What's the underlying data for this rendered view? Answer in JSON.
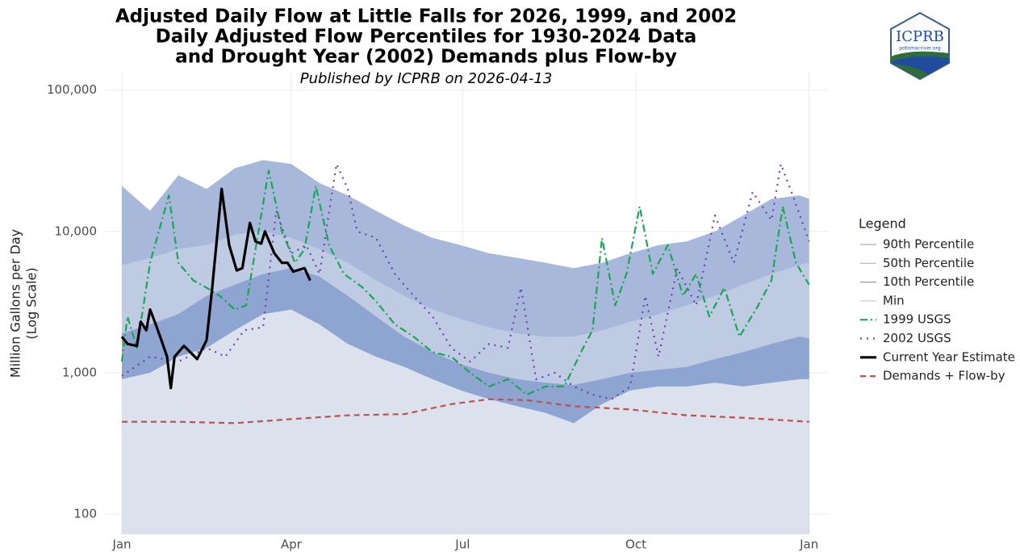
{
  "chart_data": {
    "type": "line",
    "title": [
      "Adjusted Daily Flow at Little Falls for 2026, 1999, and 2002",
      "Daily Adjusted Flow Percentiles for 1930-2024 Data",
      "and Drought Year (2002) Demands plus Flow-by"
    ],
    "subtitle": "Published by ICPRB on 2026-04-13",
    "y_label": [
      "Million Gallons per Day",
      "(Log Scale)"
    ],
    "legend_title": "Legend",
    "legend": "right",
    "ylog": true,
    "grid": true,
    "xlim": [
      -9,
      375
    ],
    "ylim": [
      72,
      133000
    ],
    "xticks": [
      {
        "value": 0,
        "label": "Jan"
      },
      {
        "value": 90,
        "label": "Apr"
      },
      {
        "value": 181,
        "label": "Jul"
      },
      {
        "value": 273,
        "label": "Oct"
      },
      {
        "value": 365,
        "label": "Jan"
      }
    ],
    "yticks": [
      100,
      {
        "value": 1000,
        "label": "1,000"
      },
      {
        "value": 10000,
        "label": "10,000"
      },
      {
        "value": 100000,
        "label": "100,000"
      }
    ],
    "series": [
      {
        "name": "90th Percentile",
        "style": "band",
        "color": "#8e9bb8",
        "fill": "#a8b8da",
        "x": [
          0,
          15,
          30,
          45,
          60,
          75,
          90,
          105,
          120,
          135,
          150,
          165,
          180,
          195,
          210,
          225,
          240,
          255,
          270,
          285,
          300,
          315,
          330,
          345,
          360,
          365
        ],
        "values": [
          21000,
          14000,
          25000,
          20000,
          28000,
          32000,
          30000,
          22000,
          18000,
          14000,
          11000,
          9000,
          8000,
          7000,
          6500,
          6000,
          5500,
          6000,
          7000,
          8000,
          8500,
          10000,
          13000,
          17000,
          18000,
          17000
        ]
      },
      {
        "name": "50th Percentile",
        "style": "band",
        "color": "#a3acc2",
        "fill": "#bfcae3",
        "x": [
          0,
          15,
          30,
          45,
          60,
          75,
          90,
          105,
          120,
          135,
          150,
          165,
          180,
          195,
          210,
          225,
          240,
          255,
          270,
          285,
          300,
          315,
          330,
          345,
          360,
          365
        ],
        "values": [
          5800,
          6500,
          7500,
          8000,
          9500,
          10000,
          9000,
          7500,
          6000,
          4500,
          3500,
          2800,
          2400,
          2100,
          1900,
          1800,
          1800,
          2000,
          2300,
          2600,
          3000,
          3500,
          4200,
          5000,
          5800,
          6000
        ]
      },
      {
        "name": "10th Percentile",
        "style": "band",
        "color": "#7189bb",
        "fill": "#8ea5d2",
        "x": [
          0,
          15,
          30,
          45,
          60,
          75,
          90,
          105,
          120,
          135,
          150,
          165,
          180,
          195,
          210,
          225,
          240,
          255,
          270,
          285,
          300,
          315,
          330,
          345,
          360,
          365
        ],
        "values": [
          1900,
          2200,
          2600,
          3500,
          4200,
          5000,
          5500,
          4800,
          3500,
          2500,
          1800,
          1400,
          1150,
          1000,
          900,
          850,
          820,
          900,
          1000,
          1050,
          1100,
          1250,
          1400,
          1600,
          1800,
          1750
        ]
      },
      {
        "name": "Min",
        "style": "band",
        "color": "#b9bfcc",
        "fill": "#dce1ee",
        "x": [
          0,
          15,
          30,
          45,
          60,
          75,
          90,
          105,
          120,
          135,
          150,
          165,
          180,
          195,
          210,
          225,
          240,
          255,
          270,
          285,
          300,
          315,
          330,
          345,
          360,
          365
        ],
        "values": [
          900,
          1000,
          1300,
          1500,
          2000,
          2600,
          2800,
          2200,
          1600,
          1300,
          1100,
          900,
          750,
          650,
          580,
          520,
          440,
          600,
          750,
          800,
          800,
          850,
          800,
          850,
          900,
          900
        ]
      },
      {
        "name": "1999 USGS",
        "style": "line",
        "linestyle": "dashdot",
        "color": "#1aa655",
        "x": [
          0,
          3,
          8,
          15,
          25,
          30,
          38,
          45,
          52,
          60,
          66,
          72,
          78,
          85,
          92,
          97,
          103,
          110,
          118,
          128,
          135,
          145,
          155,
          165,
          175,
          185,
          195,
          205,
          215,
          225,
          235,
          245,
          250,
          255,
          262,
          268,
          275,
          282,
          290,
          298,
          305,
          312,
          320,
          328,
          338,
          345,
          351,
          358,
          365
        ],
        "values": [
          1200,
          2500,
          1500,
          6000,
          18000,
          6000,
          4500,
          4000,
          3500,
          2800,
          3000,
          9000,
          27000,
          10000,
          6000,
          7500,
          21000,
          8000,
          5000,
          4000,
          3200,
          2200,
          1800,
          1400,
          1300,
          1000,
          800,
          900,
          700,
          800,
          800,
          1500,
          2000,
          9000,
          3000,
          5000,
          15000,
          5000,
          8000,
          3500,
          5000,
          2500,
          4000,
          1800,
          3000,
          4500,
          15000,
          6000,
          4200
        ]
      },
      {
        "name": "2002 USGS",
        "style": "line",
        "linestyle": "dotted",
        "color": "#7040b0",
        "x": [
          0,
          15,
          30,
          45,
          55,
          65,
          75,
          82,
          90,
          98,
          105,
          114,
          120,
          125,
          135,
          145,
          155,
          165,
          175,
          185,
          195,
          205,
          212,
          220,
          230,
          240,
          250,
          260,
          270,
          278,
          285,
          295,
          305,
          315,
          325,
          335,
          345,
          350,
          357,
          365
        ],
        "values": [
          950,
          1300,
          1200,
          1500,
          1300,
          2000,
          2100,
          14000,
          7000,
          8000,
          5000,
          30000,
          20000,
          10000,
          9000,
          5000,
          3500,
          2500,
          1500,
          1200,
          1600,
          1500,
          4000,
          900,
          1000,
          800,
          700,
          650,
          800,
          3500,
          1300,
          5500,
          3000,
          13000,
          6000,
          19000,
          12000,
          30000,
          17000,
          8500
        ]
      },
      {
        "name": "Current Year Estimate",
        "style": "line",
        "linestyle": "solid",
        "color": "#000000",
        "x": [
          0,
          3,
          8,
          10,
          13,
          15,
          18,
          21,
          24,
          26,
          28,
          33,
          40,
          45,
          48,
          53,
          57,
          61,
          64,
          68,
          71,
          74,
          76,
          81,
          85,
          88,
          91,
          97,
          100
        ],
        "values": [
          1800,
          1600,
          1550,
          2300,
          2000,
          2800,
          2200,
          1700,
          1300,
          780,
          1300,
          1550,
          1250,
          1700,
          4000,
          20000,
          8000,
          5300,
          5500,
          11500,
          8500,
          8200,
          10000,
          7000,
          6000,
          6000,
          5200,
          5500,
          4500
        ]
      },
      {
        "name": "Demands + Flow-by",
        "style": "line",
        "linestyle": "dashed",
        "color": "#c0504d",
        "x": [
          0,
          30,
          60,
          90,
          120,
          150,
          175,
          195,
          215,
          240,
          270,
          300,
          330,
          365
        ],
        "values": [
          450,
          450,
          440,
          470,
          500,
          510,
          600,
          650,
          640,
          580,
          550,
          500,
          480,
          450
        ]
      }
    ]
  },
  "logo": {
    "name": "ICPRB",
    "url": "potomacriver.org"
  }
}
